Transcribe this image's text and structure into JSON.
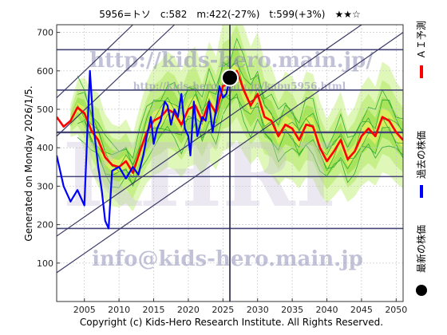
{
  "chart_data": {
    "type": "line",
    "title": "5956=トソ　c:582　m:422(-27%)　t:599(+3%)　★★☆",
    "ylabel": "Generated on Monday 2026/1/5.",
    "footer": "Copyright (c) Kids-Hero Research Institute. All Rights Reserved.",
    "watermark_url": "http://kids-hero.main.jp/",
    "watermark_url_small": "http://kids-hero.main.jp/kabu5956.html",
    "watermark_email": "info@kids-hero.main.jp",
    "watermark_logo": "KHRI",
    "xlim": [
      2001,
      2051
    ],
    "ylim": [
      0,
      720
    ],
    "x_ticks": [
      2005,
      2010,
      2015,
      2020,
      2025,
      2030,
      2035,
      2040,
      2045,
      2050
    ],
    "y_ticks": [
      100,
      200,
      300,
      400,
      500,
      600,
      700
    ],
    "horizontal_lines": [
      190,
      325,
      440,
      550,
      655
    ],
    "current_marker": {
      "x": 2026.0,
      "y": 582
    },
    "current_year_line": 2026.0,
    "channel_lines": [
      {
        "x1": 2001,
        "y1": 170,
        "x2": 2045,
        "y2": 720
      },
      {
        "x1": 2001,
        "y1": 75,
        "x2": 2051,
        "y2": 700
      },
      {
        "x1": 2001,
        "y1": 430,
        "x2": 2018,
        "y2": 720
      },
      {
        "x1": 2001,
        "y1": 530,
        "x2": 2012,
        "y2": 720
      }
    ],
    "series": [
      {
        "name": "ＡＩ予測",
        "color": "#ff0000",
        "x": [
          2001,
          2002,
          2003,
          2004,
          2005,
          2006,
          2007,
          2008,
          2009,
          2010,
          2011,
          2012,
          2013,
          2014,
          2015,
          2016,
          2017,
          2018,
          2019,
          2020,
          2021,
          2022,
          2023,
          2024,
          2025,
          2026,
          2027,
          2028,
          2029,
          2030,
          2031,
          2032,
          2033,
          2034,
          2035,
          2036,
          2037,
          2038,
          2039,
          2040,
          2041,
          2042,
          2043,
          2044,
          2045,
          2046,
          2047,
          2048,
          2049,
          2050,
          2051
        ],
        "y": [
          480,
          455,
          470,
          505,
          490,
          445,
          420,
          375,
          355,
          350,
          365,
          335,
          390,
          440,
          470,
          480,
          500,
          490,
          460,
          500,
          510,
          470,
          520,
          490,
          560,
          570,
          600,
          550,
          510,
          540,
          480,
          470,
          430,
          460,
          450,
          420,
          460,
          455,
          400,
          365,
          390,
          420,
          370,
          390,
          430,
          450,
          430,
          480,
          470,
          440,
          420
        ]
      },
      {
        "name": "過去の株価",
        "color": "#0000ff",
        "x": [
          2001,
          2002,
          2003,
          2004,
          2005,
          2005.4,
          2005.8,
          2006.3,
          2007,
          2007.5,
          2008,
          2008.5,
          2009,
          2010,
          2011,
          2012,
          2012.8,
          2013.5,
          2014,
          2014.6,
          2015,
          2015.5,
          2016,
          2016.6,
          2017,
          2017.5,
          2018,
          2018.5,
          2019,
          2019.5,
          2020,
          2020.3,
          2020.8,
          2021.3,
          2022,
          2022.5,
          2023,
          2023.5,
          2024,
          2024.5,
          2025,
          2025.5,
          2026
        ],
        "y": [
          380,
          300,
          260,
          290,
          250,
          430,
          600,
          460,
          350,
          290,
          210,
          190,
          340,
          350,
          320,
          350,
          330,
          380,
          430,
          480,
          410,
          450,
          470,
          520,
          510,
          460,
          500,
          480,
          540,
          450,
          430,
          380,
          520,
          430,
          480,
          470,
          520,
          440,
          500,
          560,
          530,
          540,
          582
        ]
      }
    ],
    "legend": [
      {
        "label": "ＡＩ予測",
        "color": "#ff0000"
      },
      {
        "label": "過去の株価",
        "color": "#0000ff"
      },
      {
        "label": "最新の株価",
        "color": "#000000"
      }
    ]
  }
}
